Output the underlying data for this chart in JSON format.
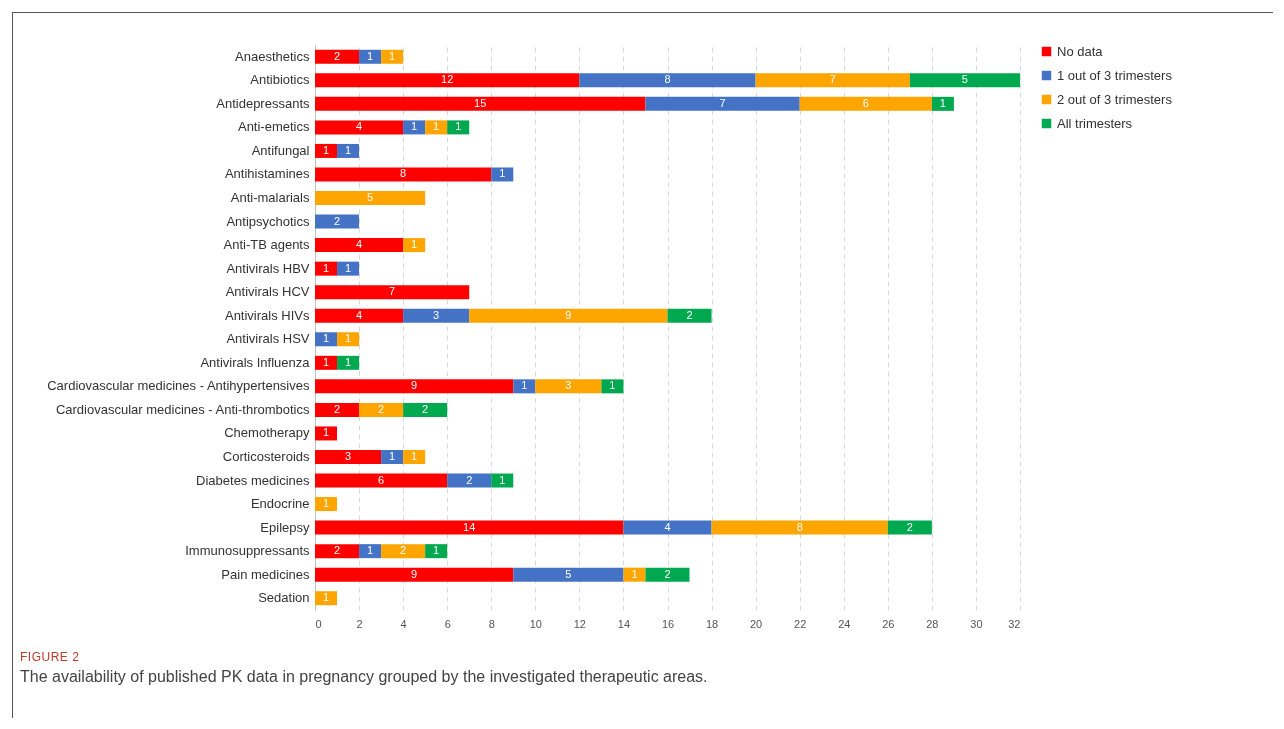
{
  "chart_data": {
    "type": "bar",
    "orientation": "horizontal",
    "stacked": true,
    "data_labels": true,
    "grid": "x",
    "legend": "right",
    "categories": [
      "Anaesthetics",
      "Antibiotics",
      "Antidepressants",
      "Anti-emetics",
      "Antifungal",
      "Antihistamines",
      "Anti-malarials",
      "Antipsychotics",
      "Anti-TB agents",
      "Antivirals HBV",
      "Antivirals HCV",
      "Antivirals HIVs",
      "Antivirals HSV",
      "Antivirals Influenza",
      "Cardiovascular medicines - Antihypertensives",
      "Cardiovascular medicines - Anti-thrombotics",
      "Chemotherapy",
      "Corticosteroids",
      "Diabetes medicines",
      "Endocrine",
      "Epilepsy",
      "Immunosuppressants",
      "Pain medicines",
      "Sedation"
    ],
    "series": [
      {
        "name": "No data",
        "color": "#ff0000",
        "values": [
          2,
          12,
          15,
          4,
          1,
          8,
          null,
          null,
          4,
          1,
          7,
          4,
          null,
          1,
          9,
          2,
          1,
          3,
          6,
          null,
          14,
          2,
          9,
          null
        ]
      },
      {
        "name": "1 out of 3 trimesters",
        "color": "#4472c4",
        "values": [
          1,
          8,
          7,
          1,
          1,
          1,
          null,
          2,
          null,
          1,
          null,
          3,
          1,
          null,
          1,
          null,
          null,
          1,
          2,
          null,
          4,
          1,
          5,
          null
        ]
      },
      {
        "name": "2 out of 3 trimesters",
        "color": "#ffa500",
        "values": [
          1,
          7,
          6,
          1,
          null,
          null,
          5,
          null,
          1,
          null,
          null,
          9,
          1,
          null,
          3,
          2,
          null,
          1,
          null,
          1,
          8,
          2,
          1,
          1
        ]
      },
      {
        "name": "All trimesters",
        "color": "#00a84f",
        "values": [
          null,
          5,
          1,
          1,
          null,
          null,
          null,
          null,
          null,
          null,
          null,
          2,
          null,
          1,
          1,
          2,
          null,
          null,
          1,
          null,
          2,
          1,
          2,
          null
        ]
      }
    ],
    "xlim": [
      0,
      32
    ],
    "xticks": [
      0,
      2,
      4,
      6,
      8,
      10,
      12,
      14,
      16,
      18,
      20,
      22,
      24,
      26,
      28,
      30,
      32
    ],
    "annotations": [
      "FIGURE 2",
      "The availability of published PK data in pregnancy grouped by the investigated therapeutic areas."
    ]
  }
}
